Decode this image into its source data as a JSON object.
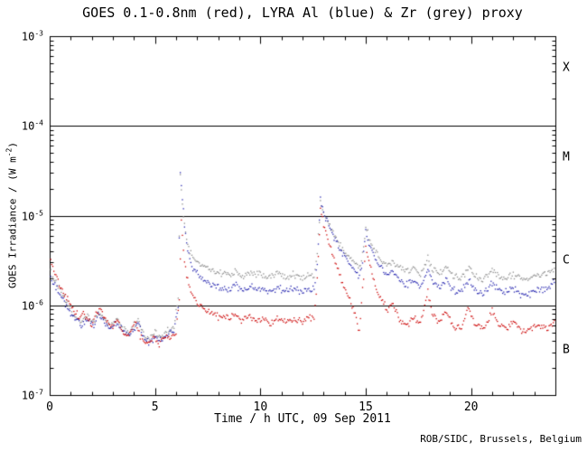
{
  "chart": {
    "title": "GOES 0.1-0.8nm (red), LYRA Al (blue) & Zr (grey) proxy",
    "xlabel": "Time / h UTC, 09 Sep 2011",
    "ylabel_pre": "GOES Irradiance / (W m",
    "ylabel_sup": "-2",
    "ylabel_post": ")",
    "credit": "ROB/SIDC, Brussels, Belgium"
  },
  "chart_data": {
    "type": "scatter",
    "title": "GOES 0.1-0.8nm (red), LYRA Al (blue) & Zr (grey) proxy",
    "xlabel": "Time / h UTC, 09 Sep 2011",
    "ylabel": "GOES Irradiance / (W m^-2)",
    "x_range": [
      0,
      24
    ],
    "y_range_exp": [
      -7,
      -3
    ],
    "y_scale": "log",
    "grid": false,
    "x_major_ticks": [
      0,
      5,
      10,
      15,
      20
    ],
    "x_tick_labels": [
      "0",
      "5",
      "10",
      "15",
      "20"
    ],
    "x_minor_step": 1,
    "y_tick_labels": [
      {
        "base": "10",
        "exp": "-3",
        "value": -3
      },
      {
        "base": "10",
        "exp": "-4",
        "value": -4
      },
      {
        "base": "10",
        "exp": "-5",
        "value": -5
      },
      {
        "base": "10",
        "exp": "-6",
        "value": -6
      },
      {
        "base": "10",
        "exp": "-7",
        "value": -7
      }
    ],
    "hlines": [
      0.0001,
      1e-05,
      1e-06
    ],
    "flare_classes": [
      {
        "label": "X",
        "exp": -3.35
      },
      {
        "label": "M",
        "exp": -4.35
      },
      {
        "label": "C",
        "exp": -5.5
      },
      {
        "label": "B",
        "exp": -6.5
      }
    ],
    "series": [
      {
        "name": "GOES 0.1-0.8nm",
        "color": "#cc0000",
        "points": [
          [
            0,
            3.5e-06
          ],
          [
            0.2,
            2.5e-06
          ],
          [
            0.5,
            1.6e-06
          ],
          [
            0.8,
            1.2e-06
          ],
          [
            1.1,
            9e-07
          ],
          [
            1.4,
            7.5e-07
          ],
          [
            1.6,
            8.5e-07
          ],
          [
            1.8,
            7e-07
          ],
          [
            2.0,
            6e-07
          ],
          [
            2.2,
            8e-07
          ],
          [
            2.45,
            9e-07
          ],
          [
            2.7,
            6.5e-07
          ],
          [
            3.0,
            5.5e-07
          ],
          [
            3.2,
            7e-07
          ],
          [
            3.45,
            5e-07
          ],
          [
            3.7,
            4.5e-07
          ],
          [
            3.9,
            5.5e-07
          ],
          [
            4.1,
            6.5e-07
          ],
          [
            4.3,
            4.5e-07
          ],
          [
            4.6,
            3.6e-07
          ],
          [
            4.9,
            4.2e-07
          ],
          [
            5.2,
            3.7e-07
          ],
          [
            5.5,
            4.5e-07
          ],
          [
            5.8,
            4.2e-07
          ],
          [
            6.0,
            5e-07
          ],
          [
            6.15,
            1.2e-06
          ],
          [
            6.25,
            9e-06
          ],
          [
            6.35,
            4e-06
          ],
          [
            6.5,
            2e-06
          ],
          [
            6.7,
            1.4e-06
          ],
          [
            7.0,
            1.05e-06
          ],
          [
            7.5,
            8.5e-07
          ],
          [
            8.0,
            7.5e-07
          ],
          [
            8.5,
            7e-07
          ],
          [
            8.8,
            8e-07
          ],
          [
            9.1,
            6.8e-07
          ],
          [
            9.5,
            7.8e-07
          ],
          [
            9.8,
            6.5e-07
          ],
          [
            10.2,
            7.2e-07
          ],
          [
            10.5,
            6.2e-07
          ],
          [
            10.9,
            7.5e-07
          ],
          [
            11.2,
            6.5e-07
          ],
          [
            11.6,
            7e-07
          ],
          [
            12.0,
            6.5e-07
          ],
          [
            12.3,
            7.5e-07
          ],
          [
            12.55,
            7e-07
          ],
          [
            12.7,
            2e-06
          ],
          [
            12.85,
            1.2e-05
          ],
          [
            13.0,
            8e-06
          ],
          [
            13.3,
            4.5e-06
          ],
          [
            13.6,
            2.8e-06
          ],
          [
            13.9,
            1.8e-06
          ],
          [
            14.2,
            1.2e-06
          ],
          [
            14.5,
            8e-07
          ],
          [
            14.7,
            5e-07
          ],
          [
            14.85,
            1.5e-06
          ],
          [
            15.0,
            4.5e-06
          ],
          [
            15.15,
            3e-06
          ],
          [
            15.4,
            1.8e-06
          ],
          [
            15.7,
            1.2e-06
          ],
          [
            16.0,
            9e-07
          ],
          [
            16.3,
            1.05e-06
          ],
          [
            16.6,
            7e-07
          ],
          [
            17.0,
            6e-07
          ],
          [
            17.3,
            7.5e-07
          ],
          [
            17.6,
            6e-07
          ],
          [
            17.95,
            1.4e-06
          ],
          [
            18.15,
            8e-07
          ],
          [
            18.5,
            6.5e-07
          ],
          [
            18.8,
            9e-07
          ],
          [
            19.1,
            6e-07
          ],
          [
            19.5,
            5.5e-07
          ],
          [
            19.9,
            9.5e-07
          ],
          [
            20.2,
            6e-07
          ],
          [
            20.6,
            5.5e-07
          ],
          [
            21.0,
            8.5e-07
          ],
          [
            21.3,
            6e-07
          ],
          [
            21.7,
            5.5e-07
          ],
          [
            22.0,
            6.5e-07
          ],
          [
            22.4,
            5e-07
          ],
          [
            22.8,
            5.5e-07
          ],
          [
            23.2,
            6e-07
          ],
          [
            23.6,
            5.5e-07
          ],
          [
            24.0,
            7e-07
          ]
        ]
      },
      {
        "name": "LYRA Al proxy",
        "color": "#2626b0",
        "points": [
          [
            0,
            2.2e-06
          ],
          [
            0.3,
            1.6e-06
          ],
          [
            0.6,
            1.2e-06
          ],
          [
            0.9,
            9e-07
          ],
          [
            1.2,
            7e-07
          ],
          [
            1.5,
            6e-07
          ],
          [
            1.8,
            7e-07
          ],
          [
            2.1,
            6e-07
          ],
          [
            2.3,
            7.5e-07
          ],
          [
            2.6,
            6.5e-07
          ],
          [
            2.9,
            5.5e-07
          ],
          [
            3.2,
            6.5e-07
          ],
          [
            3.5,
            5e-07
          ],
          [
            3.8,
            4.5e-07
          ],
          [
            4.0,
            5.5e-07
          ],
          [
            4.2,
            6.5e-07
          ],
          [
            4.4,
            4.5e-07
          ],
          [
            4.7,
            3.8e-07
          ],
          [
            5.0,
            4.5e-07
          ],
          [
            5.3,
            4e-07
          ],
          [
            5.6,
            4.8e-07
          ],
          [
            5.9,
            5e-07
          ],
          [
            6.1,
            1e-06
          ],
          [
            6.2,
            3.2e-05
          ],
          [
            6.3,
            1.5e-05
          ],
          [
            6.45,
            6e-06
          ],
          [
            6.6,
            3.5e-06
          ],
          [
            6.8,
            2.6e-06
          ],
          [
            7.1,
            2.1e-06
          ],
          [
            7.5,
            1.8e-06
          ],
          [
            8.0,
            1.6e-06
          ],
          [
            8.5,
            1.5e-06
          ],
          [
            8.8,
            1.7e-06
          ],
          [
            9.2,
            1.45e-06
          ],
          [
            9.6,
            1.6e-06
          ],
          [
            10.0,
            1.5e-06
          ],
          [
            10.4,
            1.4e-06
          ],
          [
            10.8,
            1.6e-06
          ],
          [
            11.2,
            1.45e-06
          ],
          [
            11.6,
            1.5e-06
          ],
          [
            12.0,
            1.4e-06
          ],
          [
            12.3,
            1.55e-06
          ],
          [
            12.55,
            1.5e-06
          ],
          [
            12.7,
            3e-06
          ],
          [
            12.85,
            1.5e-05
          ],
          [
            13.0,
            1.1e-05
          ],
          [
            13.3,
            7e-06
          ],
          [
            13.6,
            5e-06
          ],
          [
            13.9,
            3.8e-06
          ],
          [
            14.2,
            3e-06
          ],
          [
            14.5,
            2.4e-06
          ],
          [
            14.7,
            2.1e-06
          ],
          [
            14.85,
            3e-06
          ],
          [
            15.0,
            6.5e-06
          ],
          [
            15.15,
            5e-06
          ],
          [
            15.4,
            3.5e-06
          ],
          [
            15.7,
            2.6e-06
          ],
          [
            16.0,
            2.2e-06
          ],
          [
            16.3,
            2.4e-06
          ],
          [
            16.6,
            1.9e-06
          ],
          [
            17.0,
            1.7e-06
          ],
          [
            17.3,
            1.9e-06
          ],
          [
            17.6,
            1.6e-06
          ],
          [
            17.95,
            2.6e-06
          ],
          [
            18.15,
            1.9e-06
          ],
          [
            18.5,
            1.6e-06
          ],
          [
            18.8,
            2e-06
          ],
          [
            19.1,
            1.5e-06
          ],
          [
            19.5,
            1.4e-06
          ],
          [
            19.9,
            1.9e-06
          ],
          [
            20.2,
            1.5e-06
          ],
          [
            20.6,
            1.35e-06
          ],
          [
            21.0,
            1.8e-06
          ],
          [
            21.3,
            1.5e-06
          ],
          [
            21.7,
            1.4e-06
          ],
          [
            22.0,
            1.55e-06
          ],
          [
            22.4,
            1.3e-06
          ],
          [
            22.8,
            1.35e-06
          ],
          [
            23.2,
            1.5e-06
          ],
          [
            23.6,
            1.5e-06
          ],
          [
            24.0,
            1.9e-06
          ]
        ]
      },
      {
        "name": "LYRA Zr proxy",
        "color": "#8c8c8c",
        "points": [
          [
            0,
            2.4e-06
          ],
          [
            0.3,
            1.8e-06
          ],
          [
            0.6,
            1.3e-06
          ],
          [
            0.9,
            1e-06
          ],
          [
            1.2,
            7.5e-07
          ],
          [
            1.5,
            6.5e-07
          ],
          [
            1.8,
            7.5e-07
          ],
          [
            2.1,
            6.5e-07
          ],
          [
            2.3,
            8e-07
          ],
          [
            2.6,
            7e-07
          ],
          [
            2.9,
            6e-07
          ],
          [
            3.2,
            7e-07
          ],
          [
            3.5,
            5.5e-07
          ],
          [
            3.8,
            5e-07
          ],
          [
            4.0,
            6e-07
          ],
          [
            4.2,
            7e-07
          ],
          [
            4.4,
            5e-07
          ],
          [
            4.7,
            4.2e-07
          ],
          [
            5.0,
            5e-07
          ],
          [
            5.3,
            4.5e-07
          ],
          [
            5.6,
            5.2e-07
          ],
          [
            5.9,
            5.5e-07
          ],
          [
            6.1,
            1.2e-06
          ],
          [
            6.2,
            2.8e-05
          ],
          [
            6.3,
            1.3e-05
          ],
          [
            6.45,
            6.5e-06
          ],
          [
            6.6,
            4.2e-06
          ],
          [
            6.8,
            3.4e-06
          ],
          [
            7.1,
            2.9e-06
          ],
          [
            7.5,
            2.6e-06
          ],
          [
            8.0,
            2.3e-06
          ],
          [
            8.5,
            2.2e-06
          ],
          [
            8.8,
            2.4e-06
          ],
          [
            9.2,
            2.1e-06
          ],
          [
            9.6,
            2.3e-06
          ],
          [
            10.0,
            2.2e-06
          ],
          [
            10.4,
            2e-06
          ],
          [
            10.8,
            2.3e-06
          ],
          [
            11.2,
            2.1e-06
          ],
          [
            11.6,
            2.2e-06
          ],
          [
            12.0,
            2e-06
          ],
          [
            12.3,
            2.2e-06
          ],
          [
            12.55,
            2.1e-06
          ],
          [
            12.7,
            3.8e-06
          ],
          [
            12.85,
            1.4e-05
          ],
          [
            13.0,
            1.05e-05
          ],
          [
            13.3,
            7.5e-06
          ],
          [
            13.6,
            5.6e-06
          ],
          [
            13.9,
            4.4e-06
          ],
          [
            14.2,
            3.6e-06
          ],
          [
            14.5,
            3e-06
          ],
          [
            14.7,
            2.7e-06
          ],
          [
            14.85,
            3.6e-06
          ],
          [
            15.0,
            7.5e-06
          ],
          [
            15.15,
            5.8e-06
          ],
          [
            15.4,
            4.2e-06
          ],
          [
            15.7,
            3.3e-06
          ],
          [
            16.0,
            2.9e-06
          ],
          [
            16.3,
            3.1e-06
          ],
          [
            16.6,
            2.6e-06
          ],
          [
            17.0,
            2.4e-06
          ],
          [
            17.3,
            2.6e-06
          ],
          [
            17.6,
            2.3e-06
          ],
          [
            17.95,
            3.4e-06
          ],
          [
            18.15,
            2.6e-06
          ],
          [
            18.5,
            2.3e-06
          ],
          [
            18.8,
            2.7e-06
          ],
          [
            19.1,
            2.2e-06
          ],
          [
            19.5,
            2e-06
          ],
          [
            19.9,
            2.6e-06
          ],
          [
            20.2,
            2.1e-06
          ],
          [
            20.6,
            1.9e-06
          ],
          [
            21.0,
            2.4e-06
          ],
          [
            21.3,
            2.1e-06
          ],
          [
            21.7,
            2e-06
          ],
          [
            22.0,
            2.2e-06
          ],
          [
            22.4,
            1.9e-06
          ],
          [
            22.8,
            2e-06
          ],
          [
            23.2,
            2.2e-06
          ],
          [
            23.6,
            2.2e-06
          ],
          [
            24.0,
            2.7e-06
          ]
        ]
      }
    ]
  }
}
